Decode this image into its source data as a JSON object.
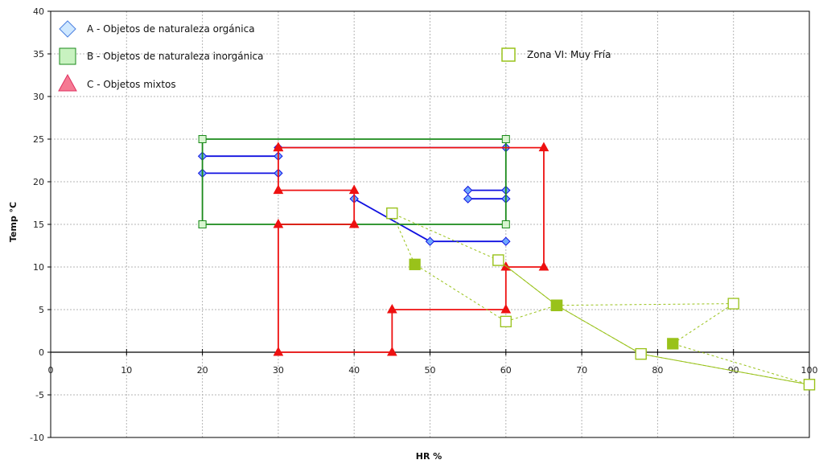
{
  "chart_data": {
    "type": "line",
    "xlabel": "HR %",
    "ylabel": "Temp °C",
    "xlim": [
      0,
      100
    ],
    "ylim": [
      -10,
      40
    ],
    "xticks": [
      0,
      10,
      20,
      30,
      40,
      50,
      60,
      70,
      80,
      90,
      100
    ],
    "yticks": [
      -10,
      -5,
      0,
      5,
      10,
      15,
      20,
      25,
      30,
      35,
      40
    ],
    "grid": true,
    "series": [
      {
        "name": "A -  Objetos de naturaleza orgánica",
        "color": "#1010e0",
        "marker": "diamond",
        "segments": [
          [
            [
              20,
              23
            ],
            [
              30,
              23
            ]
          ],
          [
            [
              20,
              21
            ],
            [
              30,
              21
            ]
          ],
          [
            [
              40,
              18
            ],
            [
              50,
              13
            ],
            [
              60,
              13
            ]
          ],
          [
            [
              55,
              19
            ],
            [
              60,
              19
            ]
          ],
          [
            [
              55,
              18
            ],
            [
              60,
              18
            ]
          ],
          [
            [
              30,
              24
            ],
            [
              60,
              24
            ]
          ]
        ]
      },
      {
        "name": "B - Objetos de naturaleza inorgánica",
        "color": "#1a8a1a",
        "marker": "square",
        "segments": [
          [
            [
              20,
              15
            ],
            [
              20,
              25
            ],
            [
              60,
              25
            ],
            [
              60,
              15
            ],
            [
              20,
              15
            ]
          ]
        ]
      },
      {
        "name": "C - Objetos mixtos",
        "color": "#ee1111",
        "marker": "triangle",
        "segments": [
          [
            [
              30,
              24
            ],
            [
              30,
              19
            ],
            [
              40,
              19
            ],
            [
              40,
              15
            ],
            [
              30,
              15
            ],
            [
              30,
              0
            ],
            [
              45,
              0
            ],
            [
              45,
              5
            ],
            [
              60,
              5
            ],
            [
              60,
              10
            ],
            [
              65,
              10
            ],
            [
              65,
              24
            ],
            [
              30,
              24
            ]
          ]
        ]
      },
      {
        "name": "Zona VI: Muy Fría",
        "color": "#99c21a",
        "marker": "open-square",
        "groups": [
          {
            "style": "dashed",
            "points": [
              [
                45,
                16.3
              ],
              [
                48,
                10.3
              ],
              [
                60,
                3.6
              ],
              [
                66.7,
                5.5
              ],
              [
                90,
                5.7
              ],
              [
                82,
                1
              ],
              [
                100,
                -3.8
              ],
              [
                77.8,
                -0.2
              ],
              [
                66.7,
                5.5
              ],
              [
                59,
                10.8
              ],
              [
                45,
                16.3
              ]
            ],
            "filled": [
              false,
              true,
              false,
              true,
              false,
              true,
              false,
              false,
              true,
              false,
              false
            ]
          },
          {
            "style": "solid",
            "points": [
              [
                59,
                10.8
              ],
              [
                66.7,
                5.5
              ],
              [
                77.8,
                -0.2
              ],
              [
                100,
                -3.8
              ]
            ],
            "filled": [
              false,
              true,
              false,
              false
            ]
          }
        ]
      }
    ],
    "legend": {
      "placement": "top-left",
      "entries": [
        "A -  Objetos de naturaleza orgánica",
        "B - Objetos de naturaleza inorgánica",
        "C - Objetos mixtos",
        "Zona VI: Muy Fría"
      ]
    }
  }
}
